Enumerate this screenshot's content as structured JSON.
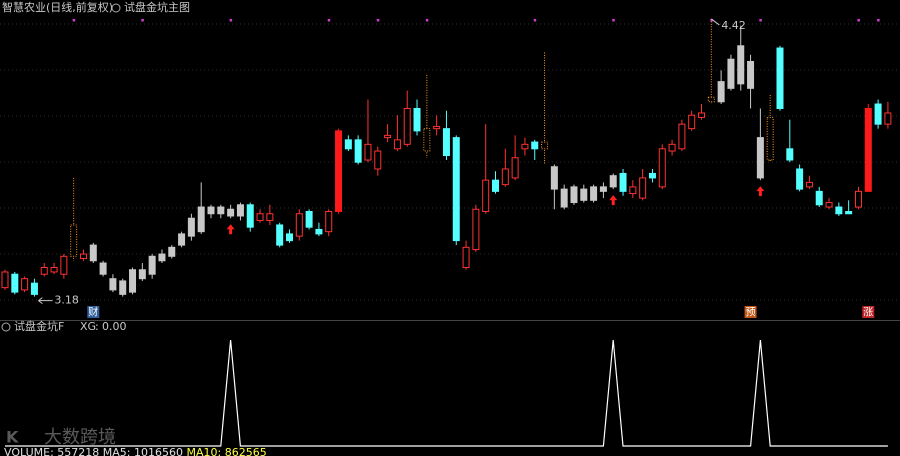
{
  "chart_data": [
    {
      "type": "candlestick",
      "title": "智慧农业(日线,前复权)",
      "subtitle": "试盘金坑主图",
      "ohlc": [
        [
          3.22,
          3.3,
          3.21,
          3.29
        ],
        [
          3.28,
          3.29,
          3.19,
          3.2
        ],
        [
          3.21,
          3.27,
          3.2,
          3.26
        ],
        [
          3.24,
          3.26,
          3.18,
          3.19
        ],
        [
          3.28,
          3.33,
          3.27,
          3.31
        ],
        [
          3.29,
          3.33,
          3.28,
          3.31
        ],
        [
          3.28,
          3.37,
          3.26,
          3.36
        ],
        [
          3.36,
          3.71,
          3.34,
          3.5
        ],
        [
          3.35,
          3.39,
          3.34,
          3.37
        ],
        [
          3.41,
          3.42,
          3.33,
          3.34
        ],
        [
          3.33,
          3.34,
          3.27,
          3.28
        ],
        [
          3.26,
          3.28,
          3.2,
          3.21
        ],
        [
          3.25,
          3.26,
          3.18,
          3.19
        ],
        [
          3.2,
          3.31,
          3.19,
          3.3
        ],
        [
          3.26,
          3.33,
          3.25,
          3.3
        ],
        [
          3.28,
          3.37,
          3.26,
          3.36
        ],
        [
          3.34,
          3.39,
          3.33,
          3.37
        ],
        [
          3.36,
          3.41,
          3.35,
          3.4
        ],
        [
          3.41,
          3.47,
          3.4,
          3.46
        ],
        [
          3.45,
          3.55,
          3.43,
          3.53
        ],
        [
          3.47,
          3.69,
          3.46,
          3.58
        ],
        [
          3.58,
          3.59,
          3.53,
          3.55
        ],
        [
          3.55,
          3.59,
          3.53,
          3.58
        ],
        [
          3.57,
          3.59,
          3.53,
          3.54
        ],
        [
          3.54,
          3.6,
          3.52,
          3.59
        ],
        [
          3.59,
          3.6,
          3.47,
          3.49
        ],
        [
          3.52,
          3.57,
          3.51,
          3.55
        ],
        [
          3.52,
          3.59,
          3.5,
          3.55
        ],
        [
          3.5,
          3.51,
          3.4,
          3.41
        ],
        [
          3.46,
          3.48,
          3.42,
          3.43
        ],
        [
          3.45,
          3.57,
          3.43,
          3.55
        ],
        [
          3.56,
          3.57,
          3.48,
          3.49
        ],
        [
          3.48,
          3.51,
          3.45,
          3.46
        ],
        [
          3.47,
          3.57,
          3.45,
          3.56
        ],
        [
          3.56,
          3.93,
          3.55,
          3.92
        ],
        [
          3.88,
          3.9,
          3.83,
          3.84
        ],
        [
          3.88,
          3.9,
          3.77,
          3.78
        ],
        [
          3.79,
          4.06,
          3.78,
          3.86
        ],
        [
          3.75,
          3.85,
          3.72,
          3.83
        ],
        [
          3.89,
          3.95,
          3.87,
          3.9
        ],
        [
          3.84,
          3.99,
          3.83,
          3.88
        ],
        [
          3.86,
          4.1,
          3.85,
          4.02
        ],
        [
          4.02,
          4.06,
          3.9,
          3.92
        ],
        [
          3.93,
          4.17,
          3.8,
          3.83
        ],
        [
          3.93,
          3.99,
          3.9,
          3.94
        ],
        [
          3.93,
          4.01,
          3.79,
          3.81
        ],
        [
          3.89,
          3.9,
          3.41,
          3.43
        ],
        [
          3.31,
          3.43,
          3.3,
          3.4
        ],
        [
          3.39,
          3.59,
          3.38,
          3.57
        ],
        [
          3.56,
          3.95,
          3.55,
          3.7
        ],
        [
          3.7,
          3.74,
          3.64,
          3.65
        ],
        [
          3.68,
          3.84,
          3.67,
          3.75
        ],
        [
          3.71,
          3.9,
          3.7,
          3.8
        ],
        [
          3.84,
          3.89,
          3.81,
          3.86
        ],
        [
          3.87,
          3.88,
          3.79,
          3.84
        ],
        [
          3.84,
          4.27,
          3.77,
          3.87
        ],
        [
          3.76,
          3.77,
          3.57,
          3.66
        ],
        [
          3.66,
          3.68,
          3.57,
          3.58
        ],
        [
          3.6,
          3.68,
          3.59,
          3.67
        ],
        [
          3.66,
          3.68,
          3.6,
          3.61
        ],
        [
          3.61,
          3.68,
          3.6,
          3.67
        ],
        [
          3.67,
          3.69,
          3.62,
          3.65
        ],
        [
          3.67,
          3.73,
          3.66,
          3.72
        ],
        [
          3.73,
          3.75,
          3.63,
          3.65
        ],
        [
          3.64,
          3.7,
          3.62,
          3.67
        ],
        [
          3.62,
          3.75,
          3.61,
          3.71
        ],
        [
          3.73,
          3.75,
          3.69,
          3.71
        ],
        [
          3.67,
          3.86,
          3.66,
          3.84
        ],
        [
          3.83,
          3.88,
          3.81,
          3.86
        ],
        [
          3.84,
          3.97,
          3.83,
          3.95
        ],
        [
          3.93,
          4.01,
          3.92,
          3.99
        ],
        [
          3.98,
          4.04,
          3.97,
          4.0
        ],
        [
          4.05,
          4.42,
          4.04,
          4.07
        ],
        [
          4.05,
          4.19,
          4.04,
          4.14
        ],
        [
          4.11,
          4.26,
          4.1,
          4.24
        ],
        [
          4.3,
          4.39,
          4.1,
          4.13
        ],
        [
          4.23,
          4.26,
          4.02,
          4.11
        ],
        [
          3.89,
          4.02,
          3.7,
          3.71
        ],
        [
          3.79,
          4.08,
          3.78,
          3.98
        ],
        [
          4.29,
          4.3,
          4.01,
          4.02
        ],
        [
          3.84,
          3.97,
          3.78,
          3.79
        ],
        [
          3.75,
          3.77,
          3.65,
          3.66
        ],
        [
          3.67,
          3.72,
          3.66,
          3.69
        ],
        [
          3.65,
          3.67,
          3.58,
          3.59
        ],
        [
          3.58,
          3.62,
          3.57,
          3.6
        ],
        [
          3.58,
          3.6,
          3.54,
          3.55
        ],
        [
          3.56,
          3.61,
          3.55,
          3.55
        ],
        [
          3.58,
          3.67,
          3.57,
          3.65
        ],
        [
          3.65,
          4.04,
          3.65,
          4.02
        ],
        [
          4.04,
          4.06,
          3.93,
          3.95
        ],
        [
          3.95,
          4.05,
          3.93,
          4.0
        ]
      ],
      "ylim": [
        3.08,
        4.5
      ],
      "up_color": "#ff3232",
      "down_color": "#54ffff",
      "gray": {
        "color": "#c8c8c8",
        "ranges": [
          [
            9,
            24
          ],
          [
            56,
            62
          ],
          [
            73,
            77
          ]
        ]
      },
      "orange": {
        "color": "#ff9a1e",
        "indices": [
          7,
          43,
          55,
          72,
          78
        ]
      },
      "solid_red": {
        "color": "#ff1a1a",
        "indices": [
          34,
          88
        ]
      },
      "high_label": {
        "index": 72,
        "value": 4.42
      },
      "low_label": {
        "index": 3,
        "value": 3.18
      },
      "signal_arrows": {
        "color": "#ff2020",
        "indices": [
          23,
          62,
          77
        ]
      },
      "top_dots": {
        "color": "#d23cd2",
        "indices": [
          7,
          14,
          23,
          33,
          38,
          43,
          54,
          62,
          72,
          77,
          87,
          89
        ]
      },
      "events": [
        {
          "index": 9,
          "label": "财",
          "color": "#2f5d9a"
        },
        {
          "index": 76,
          "label": "预",
          "color": "#c0581a"
        },
        {
          "index": 88,
          "label": "涨",
          "color": "#c02424"
        }
      ]
    },
    {
      "type": "line",
      "title": "试盘金坑F",
      "series": [
        {
          "name": "XG",
          "color": "#ffffff",
          "current": {
            "value": 0,
            "label": "0.00"
          },
          "values": [
            0,
            0,
            0,
            0,
            0,
            0,
            0,
            0,
            0,
            0,
            0,
            0,
            0,
            0,
            0,
            0,
            0,
            0,
            0,
            0,
            0,
            0,
            0,
            1,
            0,
            0,
            0,
            0,
            0,
            0,
            0,
            0,
            0,
            0,
            0,
            0,
            0,
            0,
            0,
            0,
            0,
            0,
            0,
            0,
            0,
            0,
            0,
            0,
            0,
            0,
            0,
            0,
            0,
            0,
            0,
            0,
            0,
            0,
            0,
            0,
            0,
            0,
            1,
            0,
            0,
            0,
            0,
            0,
            0,
            0,
            0,
            0,
            0,
            0,
            0,
            0,
            0,
            1,
            0,
            0,
            0,
            0,
            0,
            0,
            0,
            0,
            0,
            0,
            0,
            0,
            0
          ]
        }
      ],
      "ylim": [
        0,
        1
      ]
    }
  ],
  "footer": {
    "items": [
      {
        "name": "VOLUME",
        "value": 557218,
        "color": "#e0e0e0"
      },
      {
        "name": "MA5",
        "value": 1016560,
        "color": "#e0e0e0"
      },
      {
        "name": "MA10",
        "value": 862565,
        "color": "#ffff40"
      }
    ]
  },
  "watermark": "大数跨境"
}
